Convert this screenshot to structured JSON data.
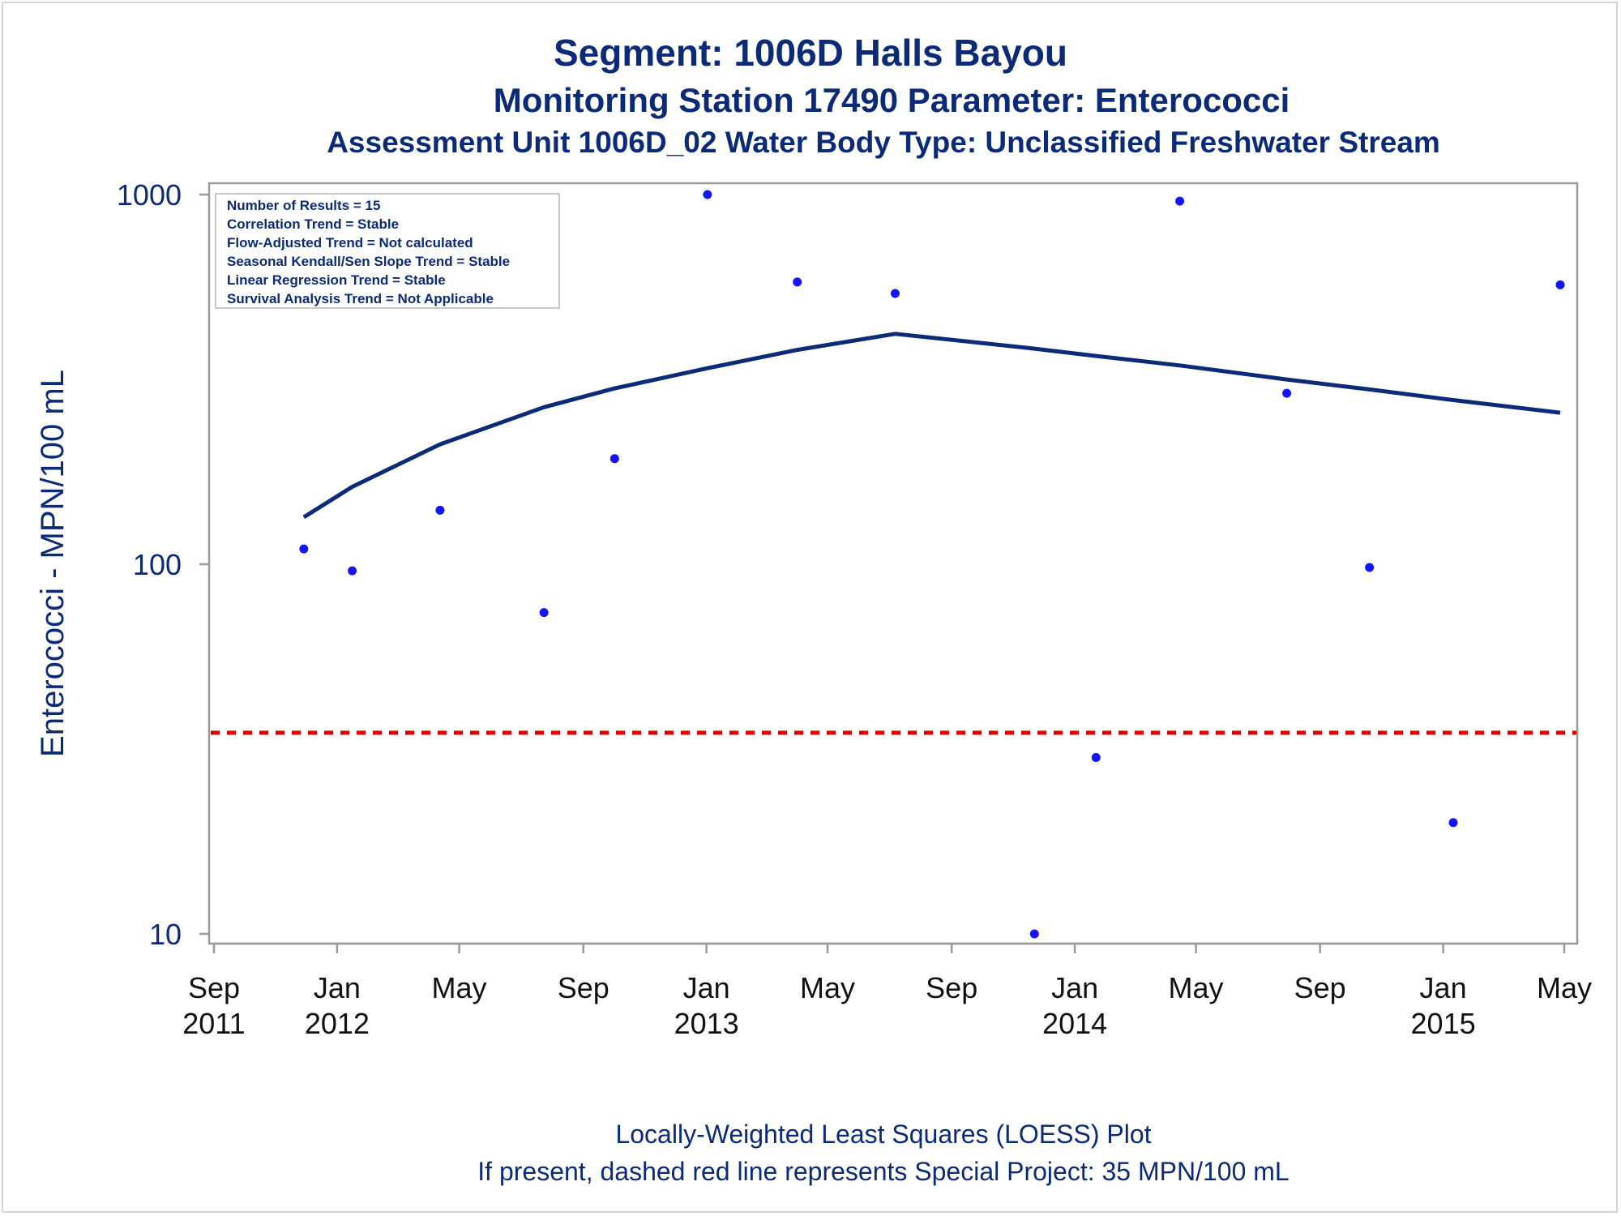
{
  "titles": {
    "title": "Segment: 1006D  Halls Bayou",
    "subtitle": "Monitoring Station 17490 Parameter: Enterococci",
    "subtitle2": "Assessment Unit 1006D_02   Water Body Type: Unclassified Freshwater Stream"
  },
  "stats_box": {
    "lines": [
      "Number of Results = 15",
      "Correlation Trend = Stable",
      "Flow-Adjusted Trend = Not calculated",
      "Seasonal Kendall/Sen Slope Trend = Stable",
      "Linear Regression Trend = Stable",
      "Survival Analysis Trend = Not Applicable"
    ]
  },
  "footnotes": {
    "line1": "Locally-Weighted Least Squares (LOESS) Plot",
    "line2": "If present, dashed red line represents Special Project: 35 MPN/100 mL"
  },
  "colors": {
    "text": "#0b2a78",
    "points": "#1414ff",
    "loess": "#0b2a78",
    "reference": "#d40000",
    "axis": "#9a9a9a"
  },
  "chart_data": {
    "type": "scatter",
    "ylabel": "Enterococci - MPN/100 mL",
    "yscale": "log",
    "ylim": [
      10,
      1000
    ],
    "yticks": [
      10,
      100,
      1000
    ],
    "xlim": [
      "2011-09-01",
      "2015-05-01"
    ],
    "xticks": [
      {
        "date": "2011-09-01",
        "label": [
          "Sep",
          "2011"
        ]
      },
      {
        "date": "2012-01-01",
        "label": [
          "Jan",
          "2012"
        ]
      },
      {
        "date": "2012-05-01",
        "label": [
          "May",
          ""
        ]
      },
      {
        "date": "2012-09-01",
        "label": [
          "Sep",
          ""
        ]
      },
      {
        "date": "2013-01-01",
        "label": [
          "Jan",
          "2013"
        ]
      },
      {
        "date": "2013-05-01",
        "label": [
          "May",
          ""
        ]
      },
      {
        "date": "2013-09-01",
        "label": [
          "Sep",
          ""
        ]
      },
      {
        "date": "2014-01-01",
        "label": [
          "Jan",
          "2014"
        ]
      },
      {
        "date": "2014-05-01",
        "label": [
          "May",
          ""
        ]
      },
      {
        "date": "2014-09-01",
        "label": [
          "Sep",
          ""
        ]
      },
      {
        "date": "2015-01-01",
        "label": [
          "Jan",
          "2015"
        ]
      },
      {
        "date": "2015-05-01",
        "label": [
          "May",
          ""
        ]
      }
    ],
    "points": [
      {
        "x": "2011-11-29",
        "y": 110
      },
      {
        "x": "2012-01-16",
        "y": 96
      },
      {
        "x": "2012-04-12",
        "y": 140
      },
      {
        "x": "2012-07-24",
        "y": 74
      },
      {
        "x": "2012-10-02",
        "y": 193
      },
      {
        "x": "2013-01-02",
        "y": 1000
      },
      {
        "x": "2013-04-01",
        "y": 580
      },
      {
        "x": "2013-07-07",
        "y": 540
      },
      {
        "x": "2013-11-22",
        "y": 10
      },
      {
        "x": "2014-01-22",
        "y": 30
      },
      {
        "x": "2014-04-15",
        "y": 960
      },
      {
        "x": "2014-07-30",
        "y": 290
      },
      {
        "x": "2014-10-20",
        "y": 98
      },
      {
        "x": "2015-01-11",
        "y": 20
      },
      {
        "x": "2015-04-27",
        "y": 570
      }
    ],
    "loess": [
      {
        "x": "2011-11-29",
        "y": 134
      },
      {
        "x": "2012-01-16",
        "y": 162
      },
      {
        "x": "2012-04-12",
        "y": 211
      },
      {
        "x": "2012-07-24",
        "y": 266
      },
      {
        "x": "2012-10-02",
        "y": 299
      },
      {
        "x": "2013-01-02",
        "y": 339
      },
      {
        "x": "2013-04-01",
        "y": 380
      },
      {
        "x": "2013-07-07",
        "y": 420
      },
      {
        "x": "2013-11-22",
        "y": 383
      },
      {
        "x": "2014-01-22",
        "y": 366
      },
      {
        "x": "2014-04-15",
        "y": 345
      },
      {
        "x": "2014-07-30",
        "y": 316
      },
      {
        "x": "2014-10-20",
        "y": 297
      },
      {
        "x": "2015-01-11",
        "y": 278
      },
      {
        "x": "2015-04-27",
        "y": 257
      }
    ],
    "reference_line": {
      "y": 35
    }
  }
}
